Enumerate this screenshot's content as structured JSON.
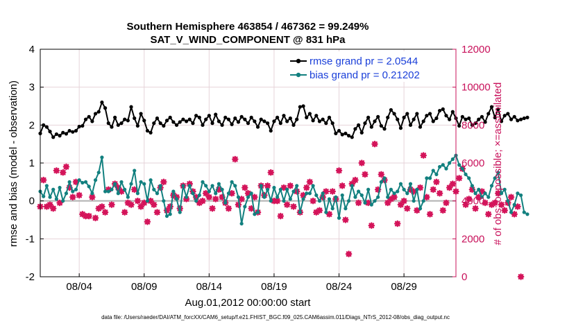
{
  "chart_data": {
    "type": "line",
    "title_line1": "Southern Hemisphere 463854 / 467362 = 99.249%",
    "title_line2": "SAT_V_WIND_COMPONENT @ 831 hPa",
    "xlabel": "Aug.01,2012 00:00:00 start",
    "ylabel_left": "rmse and bias (model - observation)",
    "ylabel_right": "# of obs: o=possible; ×=assimilated",
    "footer": "data file: /Users/raeder/DAI/ATM_forcXX/CAM6_setup/f.e21.FHIST_BGC.f09_025.CAM6assim.011/Diags_NTrS_2012-08/obs_diag_output.nc",
    "xlim": [
      1,
      33
    ],
    "ylim_left": [
      -2,
      4
    ],
    "ylim_right": [
      0,
      12000
    ],
    "xtick_labels": [
      "08/04",
      "08/09",
      "08/14",
      "08/19",
      "08/24",
      "08/29"
    ],
    "xtick_values": [
      4,
      9,
      14,
      19,
      24,
      29
    ],
    "ytick_left": [
      "-2",
      "-1",
      "0",
      "1",
      "2",
      "3",
      "4"
    ],
    "ytick_right": [
      "0",
      "2000",
      "4000",
      "6000",
      "8000",
      "10000",
      "12000"
    ],
    "grid": true,
    "colors": {
      "rmse": "#000000",
      "bias": "#12807f",
      "obs": "#d4145a",
      "legend_text": "#1a3fd9",
      "zero_line": "#b0b0b0",
      "grid": "#e6d3d9",
      "right_axis": "#c8105a"
    },
    "series": [
      {
        "name": "rmse grand pr = 2.0544",
        "axis": "left",
        "values": [
          1.78,
          2.0,
          1.95,
          1.83,
          1.68,
          1.76,
          1.72,
          1.8,
          1.77,
          1.85,
          1.82,
          1.85,
          1.96,
          1.98,
          2.15,
          2.22,
          2.1,
          2.3,
          2.35,
          2.6,
          2.45,
          2.05,
          1.95,
          2.2,
          2.0,
          2.05,
          2.15,
          2.12,
          2.48,
          2.18,
          1.98,
          2.3,
          2.12,
          1.85,
          1.8,
          2.05,
          2.18,
          2.05,
          1.98,
          2.12,
          2.2,
          2.08,
          2.0,
          2.08,
          2.15,
          2.1,
          2.15,
          2.05,
          2.25,
          2.2,
          2.0,
          2.15,
          2.25,
          2.05,
          2.28,
          2.1,
          2.0,
          2.2,
          2.15,
          2.02,
          2.18,
          2.08,
          2.22,
          2.15,
          2.05,
          2.2,
          2.1,
          1.95,
          2.15,
          2.1,
          2.05,
          1.85,
          2.1,
          2.2,
          2.05,
          2.25,
          2.1,
          2.18,
          2.0,
          2.15,
          2.48,
          2.5,
          2.2,
          2.3,
          2.12,
          2.25,
          2.1,
          2.15,
          2.05,
          2.2,
          2.05,
          1.78,
          1.85,
          1.75,
          1.78,
          1.72,
          1.68,
          1.9,
          2.0,
          1.8,
          2.05,
          2.2,
          1.95,
          2.1,
          2.22,
          1.98,
          1.9,
          2.2,
          2.4,
          2.3,
          2.15,
          1.92,
          2.2,
          2.3,
          2.0,
          2.15,
          2.3,
          1.95,
          2.1,
          2.25,
          2.3,
          2.1,
          2.18,
          2.38,
          2.42,
          2.25,
          2.15,
          2.35,
          2.18,
          1.98,
          2.22,
          2.15,
          2.18,
          2.0,
          2.05,
          2.15,
          2.22,
          2.08,
          2.3,
          2.48,
          2.2,
          2.42,
          2.1,
          2.25,
          2.3,
          2.15,
          2.22,
          2.12,
          2.15,
          2.18,
          2.2
        ]
      },
      {
        "name": "bias grand pr = 0.21202",
        "axis": "left",
        "values": [
          0.25,
          0.12,
          0.4,
          0.1,
          0.3,
          0.05,
          0.35,
          0.0,
          0.2,
          0.5,
          0.25,
          0.3,
          0.55,
          0.48,
          0.5,
          0.38,
          0.2,
          0.55,
          0.75,
          1.15,
          0.25,
          0.25,
          0.3,
          0.45,
          0.2,
          0.5,
          0.3,
          0.1,
          0.45,
          0.8,
          0.2,
          0.5,
          0.45,
          0.0,
          0.55,
          0.3,
          0.2,
          0.4,
          0.0,
          -0.4,
          -0.35,
          0.25,
          0.05,
          -0.3,
          0.4,
          0.1,
          0.4,
          0.2,
          0.0,
          0.15,
          0.5,
          0.4,
          0.25,
          0.4,
          0.2,
          0.45,
          0.3,
          -0.05,
          0.2,
          0.5,
          0.4,
          0.1,
          -0.6,
          -0.15,
          0.1,
          0.2,
          -0.35,
          -0.3,
          0.4,
          0.1,
          0.3,
          0.0,
          0.35,
          0.1,
          0.3,
          0.0,
          0.3,
          0.05,
          0.25,
          0.4,
          -0.3,
          0.05,
          0.2,
          0.2,
          0.4,
          0.15,
          0.0,
          0.2,
          -0.3,
          0.05,
          -0.2,
          0.1,
          -0.45,
          0.15,
          -0.2,
          0.0,
          0.4,
          0.1,
          0.25,
          0.15,
          -0.05,
          0.3,
          -0.1,
          0.0,
          0.1,
          0.5,
          0.6,
          0.1,
          0.3,
          0.2,
          0.25,
          0.45,
          0.3,
          0.2,
          0.45,
          0.0,
          0.3,
          -0.2,
          0.0,
          0.6,
          0.6,
          0.8,
          0.7,
          0.9,
          0.95,
          0.85,
          1.0,
          1.1,
          1.2,
          0.95,
          0.85,
          0.7,
          0.6,
          0.4,
          0.2,
          0.3,
          0.1,
          0.2,
          0.1,
          0.4,
          0.6,
          0.75,
          0.2,
          0.3,
          0.0,
          -0.3,
          -0.1,
          0.2,
          0.15,
          -0.3,
          -0.35
        ]
      }
    ],
    "obs_markers": {
      "name": "observation count",
      "axis": "right",
      "values": [
        3700,
        5100,
        3700,
        3800,
        3600,
        5600,
        3900,
        5500,
        5800,
        4700,
        4200,
        5000,
        4300,
        3300,
        3200,
        3200,
        4200,
        3100,
        3600,
        3700,
        3400,
        4600,
        3800,
        4900,
        4700,
        4500,
        3400,
        3900,
        3800,
        4600,
        4000,
        3700,
        3900,
        2900,
        4000,
        3800,
        3400,
        4700,
        5000,
        3500,
        3700,
        4300,
        4200,
        3600,
        4800,
        4100,
        4900,
        4500,
        4200,
        3900,
        4000,
        4400,
        4200,
        3600,
        4100,
        4600,
        4200,
        3900,
        3600,
        4400,
        6200,
        3800,
        4100,
        4700,
        4400,
        3600,
        4200,
        3400,
        4800,
        4300,
        4800,
        5500,
        4000,
        4000,
        3200,
        4700,
        3800,
        4800,
        3700,
        4500,
        3400,
        4300,
        4700,
        5000,
        4000,
        3400,
        3500,
        4200,
        4500,
        3300,
        4500,
        4100,
        5600,
        4800,
        3000,
        1200,
        4900,
        5100,
        3900,
        6000,
        5400,
        3900,
        2700,
        7000,
        4600,
        5400,
        5100,
        3900,
        4100,
        4200,
        2800,
        3800,
        4000,
        3600,
        4600,
        4500,
        3500,
        4700,
        6400,
        4200,
        3300,
        4600,
        5000,
        4400,
        3500,
        3900,
        4700,
        4900,
        4500,
        5200,
        5700,
        3800,
        4100,
        4600,
        3600,
        4200,
        4500,
        3900,
        3300,
        3800,
        3900,
        4400,
        3800,
        3500,
        3900,
        4200,
        3300,
        3700,
        0
      ]
    }
  }
}
